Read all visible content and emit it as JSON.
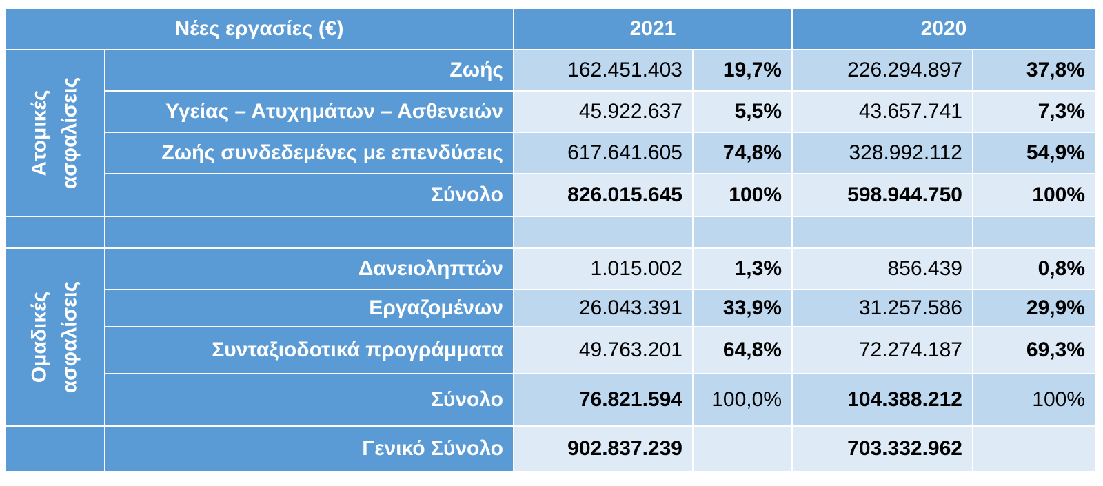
{
  "chart_data": {
    "type": "table",
    "header": {
      "title": "Νέες εργασίες   (€)",
      "year1": "2021",
      "year2": "2020"
    },
    "sections": [
      {
        "name_line1": "Ατομικές",
        "name_line2": "ασφαλίσεις",
        "rows": [
          {
            "label": "Ζωής",
            "v2021": "162.451.403",
            "p2021": "19,7%",
            "v2020": "226.294.897",
            "p2020": "37,8%"
          },
          {
            "label": "Υγείας – Ατυχημάτων – Ασθενειών",
            "v2021": "45.922.637",
            "p2021": "5,5%",
            "v2020": "43.657.741",
            "p2020": "7,3%"
          },
          {
            "label": "Ζωής συνδεδεμένες με επενδύσεις",
            "v2021": "617.641.605",
            "p2021": "74,8%",
            "v2020": "328.992.112",
            "p2020": "54,9%"
          }
        ],
        "total": {
          "label": "Σύνολο",
          "v2021": "826.015.645",
          "p2021": "100%",
          "v2020": "598.944.750",
          "p2020": "100%"
        }
      },
      {
        "name_line1": "Ομαδικές",
        "name_line2": "ασφαλίσεις",
        "rows": [
          {
            "label": "Δανειοληπτών",
            "v2021": "1.015.002",
            "p2021": "1,3%",
            "v2020": "856.439",
            "p2020": "0,8%"
          },
          {
            "label": "Εργαζομένων",
            "v2021": "26.043.391",
            "p2021": "33,9%",
            "v2020": "31.257.586",
            "p2020": "29,9%"
          },
          {
            "label": "Συνταξιοδοτικά  προγράμματα",
            "v2021": "49.763.201",
            "p2021": "64,8%",
            "v2020": "72.274.187",
            "p2020": "69,3%"
          }
        ],
        "total": {
          "label": "Σύνολο",
          "v2021": "76.821.594",
          "p2021": "100,0%",
          "v2020": "104.388.212",
          "p2020": "100%"
        }
      }
    ],
    "grand_total": {
      "label": "Γενικό  Σύνολο",
      "v2021": "902.837.239",
      "v2020": "703.332.962"
    },
    "colors": {
      "header": "#5b9bd5",
      "row_dark": "#bdd7ee",
      "row_light": "#deebf7",
      "text_header": "#ffffff"
    }
  }
}
